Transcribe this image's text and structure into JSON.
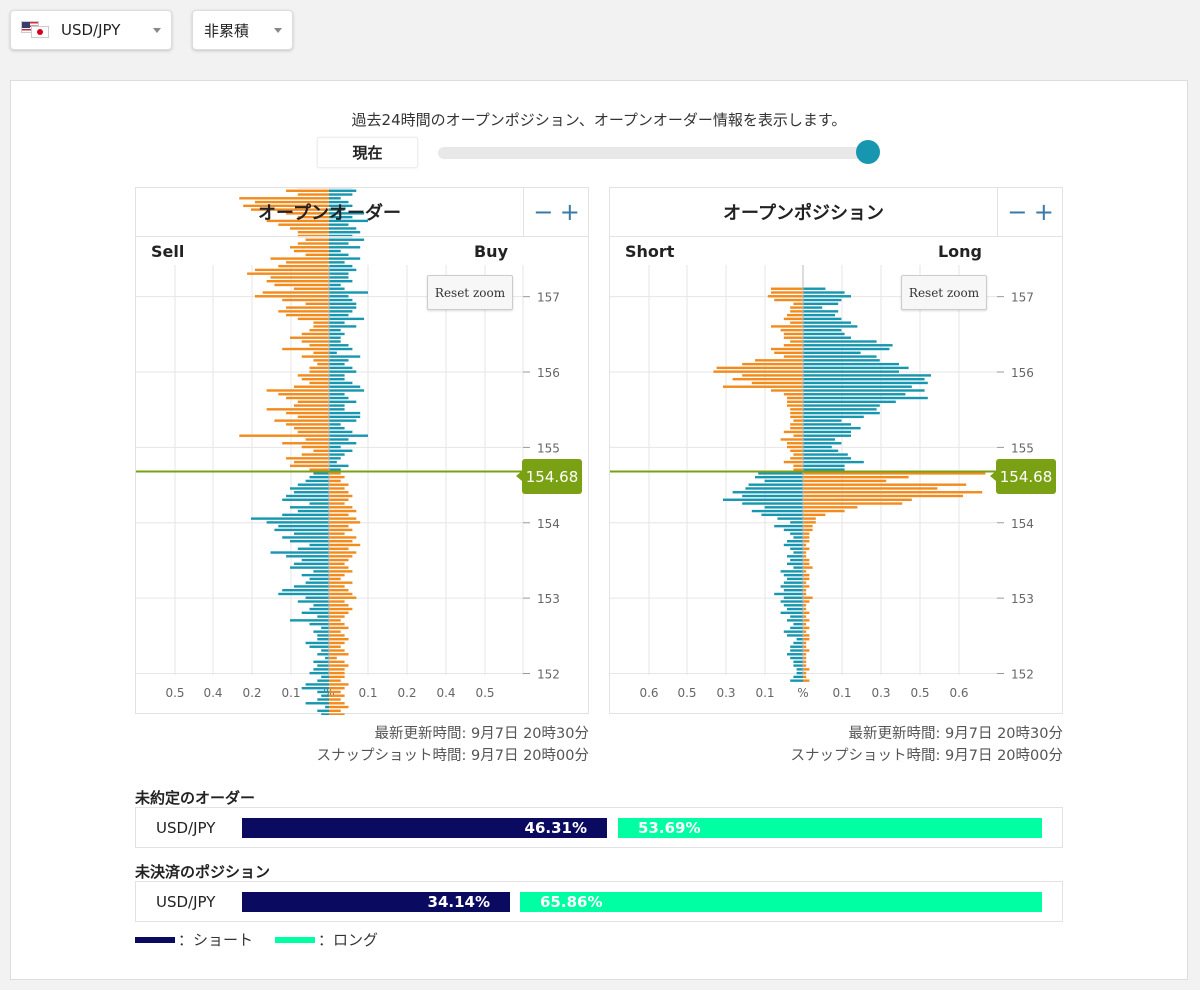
{
  "top": {
    "pair": "USD/JPY",
    "mode": "非累積"
  },
  "description": "過去24時間のオープンポジション、オープンオーダー情報を表示します。",
  "now_label": "現在",
  "orders_chart": {
    "title": "オープンオーダー",
    "left_label": "Sell",
    "right_label": "Buy",
    "reset_label": "Reset zoom",
    "current_price": "154.68",
    "updated": "最新更新時間: 9月7日 20時30分",
    "snapshot": "スナップショット時間: 9月7日 20時00分"
  },
  "positions_chart": {
    "title": "オープンポジション",
    "left_label": "Short",
    "right_label": "Long",
    "reset_label": "Reset zoom",
    "current_price": "154.68",
    "updated": "最新更新時間: 9月7日 20時30分",
    "snapshot": "スナップショット時間: 9月7日 20時00分"
  },
  "zoom": {
    "minus": "−",
    "plus": "+"
  },
  "pending_orders": {
    "title": "未約定のオーダー",
    "pair": "USD/JPY",
    "short_label": "46.31%",
    "long_label": "53.69%",
    "short_pct": 46.31,
    "long_pct": 53.69
  },
  "open_positions": {
    "title": "未決済のポジション",
    "pair": "USD/JPY",
    "short_label": "34.14%",
    "long_label": "65.86%",
    "short_pct": 34.14,
    "long_pct": 65.86
  },
  "legend": {
    "short": "：ショート",
    "long": "：ロング"
  },
  "colors": {
    "sell_short_bar": "#f28a1c",
    "buy_long_bar": "#1796b0",
    "price_line": "#7aa114",
    "ratio_short": "#0a0a60",
    "ratio_long": "#00ffa3"
  },
  "chart_data": [
    {
      "type": "bar",
      "name": "open-orders",
      "orientation": "horizontal-diverging",
      "y_ticks": [
        "157",
        "156",
        "155",
        "154",
        "153",
        "152"
      ],
      "x_ticks": [
        "0.5",
        "0.4",
        "0.2",
        "0.1",
        "%",
        "0.1",
        "0.2",
        "0.4",
        "0.5"
      ],
      "current_price": 154.68,
      "price_range": [
        151.98,
        157.42
      ],
      "bin": 0.05,
      "above_price_sell": [
        0.05,
        0.1,
        0.09,
        0.11,
        0.07,
        0.04,
        0.07,
        0.12,
        0.06,
        0.23,
        0.08,
        0.09,
        0.11,
        0.14,
        0.08,
        0.11,
        0.16,
        0.09,
        0.08,
        0.11,
        0.13,
        0.16,
        0.09,
        0.05,
        0.07,
        0.08,
        0.05,
        0.05,
        0.03,
        0.04,
        0.07,
        0.04,
        0.12,
        0.05,
        0.07,
        0.1,
        0.07,
        0.05,
        0.04,
        0.04,
        0.08,
        0.11,
        0.13,
        0.11,
        0.06,
        0.12,
        0.19,
        0.17,
        0.09,
        0.14,
        0.16,
        0.15,
        0.21,
        0.19,
        0.13,
        0.11,
        0.15,
        0.06,
        0.09,
        0.1,
        0.08,
        0.06,
        0.08,
        0.08,
        0.1,
        0.13,
        0.16,
        0.08,
        0.11,
        0.2,
        0.22,
        0.19,
        0.23,
        0.08,
        0.11,
        0.08,
        0.09,
        0.04,
        0.09,
        0.13,
        0.06,
        0.11,
        0.12,
        0.09,
        0.09,
        0.13,
        0.15,
        0.16,
        0.23,
        0.14,
        0.2,
        0.16,
        0.23
      ],
      "above_price_buy": [
        0.03,
        0.05,
        0.02,
        0.03,
        0.04,
        0.06,
        0.03,
        0.07,
        0.05,
        0.1,
        0.06,
        0.04,
        0.03,
        0.07,
        0.08,
        0.08,
        0.04,
        0.04,
        0.07,
        0.05,
        0.04,
        0.09,
        0.08,
        0.06,
        0.04,
        0.04,
        0.07,
        0.06,
        0.04,
        0.05,
        0.08,
        0.02,
        0.06,
        0.05,
        0.03,
        0.03,
        0.04,
        0.03,
        0.07,
        0.04,
        0.09,
        0.05,
        0.06,
        0.07,
        0.07,
        0.06,
        0.05,
        0.1,
        0.04,
        0.03,
        0.06,
        0.05,
        0.05,
        0.07,
        0.06,
        0.04,
        0.08,
        0.05,
        0.03,
        0.08,
        0.05,
        0.09,
        0.06,
        0.08,
        0.07,
        0.05,
        0.1,
        0.06,
        0.09,
        0.04,
        0.06,
        0.05,
        0.03,
        0.06,
        0.07,
        0.06,
        0.08,
        0.09,
        0.04,
        0.04,
        0.07,
        0.08,
        0.06,
        0.09,
        0.11,
        0.06,
        0.1,
        0.08,
        0.03,
        0.08,
        0.04,
        0.04,
        0.04
      ],
      "below_price_sell": [
        0.04,
        0.05,
        0.06,
        0.08,
        0.1,
        0.09,
        0.11,
        0.12,
        0.05,
        0.1,
        0.08,
        0.12,
        0.2,
        0.16,
        0.13,
        0.14,
        0.09,
        0.12,
        0.1,
        0.05,
        0.08,
        0.15,
        0.11,
        0.07,
        0.09,
        0.1,
        0.04,
        0.07,
        0.05,
        0.06,
        0.09,
        0.12,
        0.13,
        0.06,
        0.08,
        0.04,
        0.05,
        0.07,
        0.03,
        0.1,
        0.05,
        0.02,
        0.04,
        0.03,
        0.03,
        0.06,
        0.05,
        0.02,
        0.03,
        0.01,
        0.04,
        0.03,
        0.04,
        0.05,
        0.02,
        0.03,
        0.06,
        0.07,
        0.03,
        0.02,
        0.03,
        0.06,
        0.01,
        0.03,
        0.02,
        0.04,
        0.03,
        0.03,
        0.03,
        0.02,
        0.03,
        0.05
      ],
      "below_price_buy": [
        0.03,
        0.04,
        0.03,
        0.05,
        0.04,
        0.05,
        0.06,
        0.05,
        0.04,
        0.06,
        0.07,
        0.05,
        0.07,
        0.08,
        0.05,
        0.06,
        0.04,
        0.07,
        0.06,
        0.08,
        0.05,
        0.07,
        0.06,
        0.05,
        0.04,
        0.05,
        0.06,
        0.04,
        0.03,
        0.06,
        0.04,
        0.05,
        0.06,
        0.07,
        0.04,
        0.05,
        0.06,
        0.05,
        0.04,
        0.03,
        0.04,
        0.05,
        0.03,
        0.04,
        0.05,
        0.04,
        0.03,
        0.04,
        0.05,
        0.02,
        0.04,
        0.05,
        0.04,
        0.04,
        0.04,
        0.03,
        0.05,
        0.04,
        0.03,
        0.04,
        0.03,
        0.04,
        0.05,
        0.03,
        0.04,
        0.03,
        0.04,
        0.05,
        0.03,
        0.04,
        0.03,
        0.06
      ]
    },
    {
      "type": "bar",
      "name": "open-positions",
      "orientation": "horizontal-diverging",
      "y_ticks": [
        "157",
        "156",
        "155",
        "154",
        "153",
        "152"
      ],
      "x_ticks": [
        "0.6",
        "0.5",
        "0.3",
        "0.1",
        "%",
        "0.1",
        "0.3",
        "0.5",
        "0.6"
      ],
      "current_price": 154.68,
      "price_range": [
        151.98,
        157.42
      ],
      "bin": 0.05,
      "above_price_short": [
        0.03,
        0.03,
        0.06,
        0.04,
        0.03,
        0.04,
        0.05,
        0.05,
        0.07,
        0.03,
        0.06,
        0.04,
        0.04,
        0.03,
        0.04,
        0.04,
        0.04,
        0.05,
        0.05,
        0.05,
        0.06,
        0.1,
        0.25,
        0.16,
        0.22,
        0.19,
        0.28,
        0.27,
        0.19,
        0.15,
        0.06,
        0.09,
        0.1,
        0.06,
        0.04,
        0.06,
        0.06,
        0.07,
        0.1,
        0.04,
        0.06,
        0.05,
        0.04,
        0.04,
        0.03,
        0.09,
        0.11,
        0.1,
        0.1
      ],
      "above_price_long": [
        0.13,
        0.13,
        0.19,
        0.15,
        0.14,
        0.11,
        0.09,
        0.12,
        0.1,
        0.15,
        0.15,
        0.18,
        0.15,
        0.12,
        0.19,
        0.24,
        0.23,
        0.24,
        0.29,
        0.39,
        0.32,
        0.38,
        0.34,
        0.39,
        0.38,
        0.4,
        0.3,
        0.33,
        0.3,
        0.24,
        0.23,
        0.18,
        0.27,
        0.28,
        0.23,
        0.15,
        0.13,
        0.12,
        0.17,
        0.15,
        0.12,
        0.1,
        0.11,
        0.06,
        0.11,
        0.12,
        0.15,
        0.13,
        0.07
      ],
      "below_price_short": [
        0.14,
        0.15,
        0.12,
        0.17,
        0.18,
        0.22,
        0.19,
        0.25,
        0.19,
        0.12,
        0.16,
        0.13,
        0.08,
        0.04,
        0.09,
        0.06,
        0.04,
        0.03,
        0.05,
        0.06,
        0.04,
        0.03,
        0.05,
        0.04,
        0.05,
        0.03,
        0.07,
        0.06,
        0.05,
        0.06,
        0.07,
        0.06,
        0.09,
        0.06,
        0.07,
        0.06,
        0.05,
        0.07,
        0.04,
        0.05,
        0.03,
        0.04,
        0.06,
        0.05,
        0.02,
        0.03,
        0.04,
        0.04,
        0.05,
        0.04,
        0.03,
        0.03,
        0.02,
        0.02,
        0.03,
        0.04
      ],
      "below_price_long": [
        0.57,
        0.33,
        0.26,
        0.51,
        0.42,
        0.56,
        0.5,
        0.34,
        0.31,
        0.17,
        0.13,
        0.07,
        0.04,
        0.04,
        0.03,
        0.03,
        0.02,
        0.02,
        0.02,
        0.01,
        0.02,
        0.01,
        0.01,
        0.02,
        0.02,
        0.03,
        0.01,
        0.02,
        0.02,
        0.01,
        0.02,
        0.01,
        0.01,
        0.03,
        0.02,
        0.01,
        0.01,
        0.02,
        0.01,
        0.02,
        0.01,
        0.02,
        0.01,
        0.02,
        0.02,
        0.01,
        0.01,
        0.02,
        0.01,
        0.01,
        0.01,
        0.01,
        0.02,
        0.01,
        0.01,
        0.02
      ]
    }
  ]
}
